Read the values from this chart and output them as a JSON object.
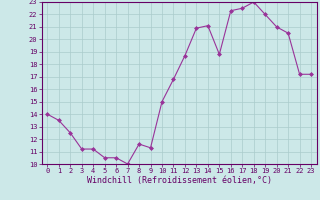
{
  "x": [
    0,
    1,
    2,
    3,
    4,
    5,
    6,
    7,
    8,
    9,
    10,
    11,
    12,
    13,
    14,
    15,
    16,
    17,
    18,
    19,
    20,
    21,
    22,
    23
  ],
  "y": [
    14,
    13.5,
    12.5,
    11.2,
    11.2,
    10.5,
    10.5,
    10.0,
    11.6,
    11.3,
    15.0,
    16.8,
    18.7,
    20.9,
    21.1,
    18.8,
    22.3,
    22.5,
    23.0,
    22.0,
    21.0,
    20.5,
    17.2,
    17.2
  ],
  "line_color": "#993399",
  "marker": "D",
  "marker_size": 2.0,
  "bg_color": "#cce8e8",
  "grid_color": "#aacccc",
  "xlabel": "Windchill (Refroidissement éolien,°C)",
  "ylabel": "",
  "title": "",
  "xlim": [
    -0.5,
    23.5
  ],
  "ylim": [
    10,
    23
  ],
  "yticks": [
    10,
    11,
    12,
    13,
    14,
    15,
    16,
    17,
    18,
    19,
    20,
    21,
    22,
    23
  ],
  "xticks": [
    0,
    1,
    2,
    3,
    4,
    5,
    6,
    7,
    8,
    9,
    10,
    11,
    12,
    13,
    14,
    15,
    16,
    17,
    18,
    19,
    20,
    21,
    22,
    23
  ],
  "tick_fontsize": 5.0,
  "xlabel_fontsize": 6.0,
  "label_color": "#660066",
  "axis_color": "#660066",
  "line_width": 0.8
}
